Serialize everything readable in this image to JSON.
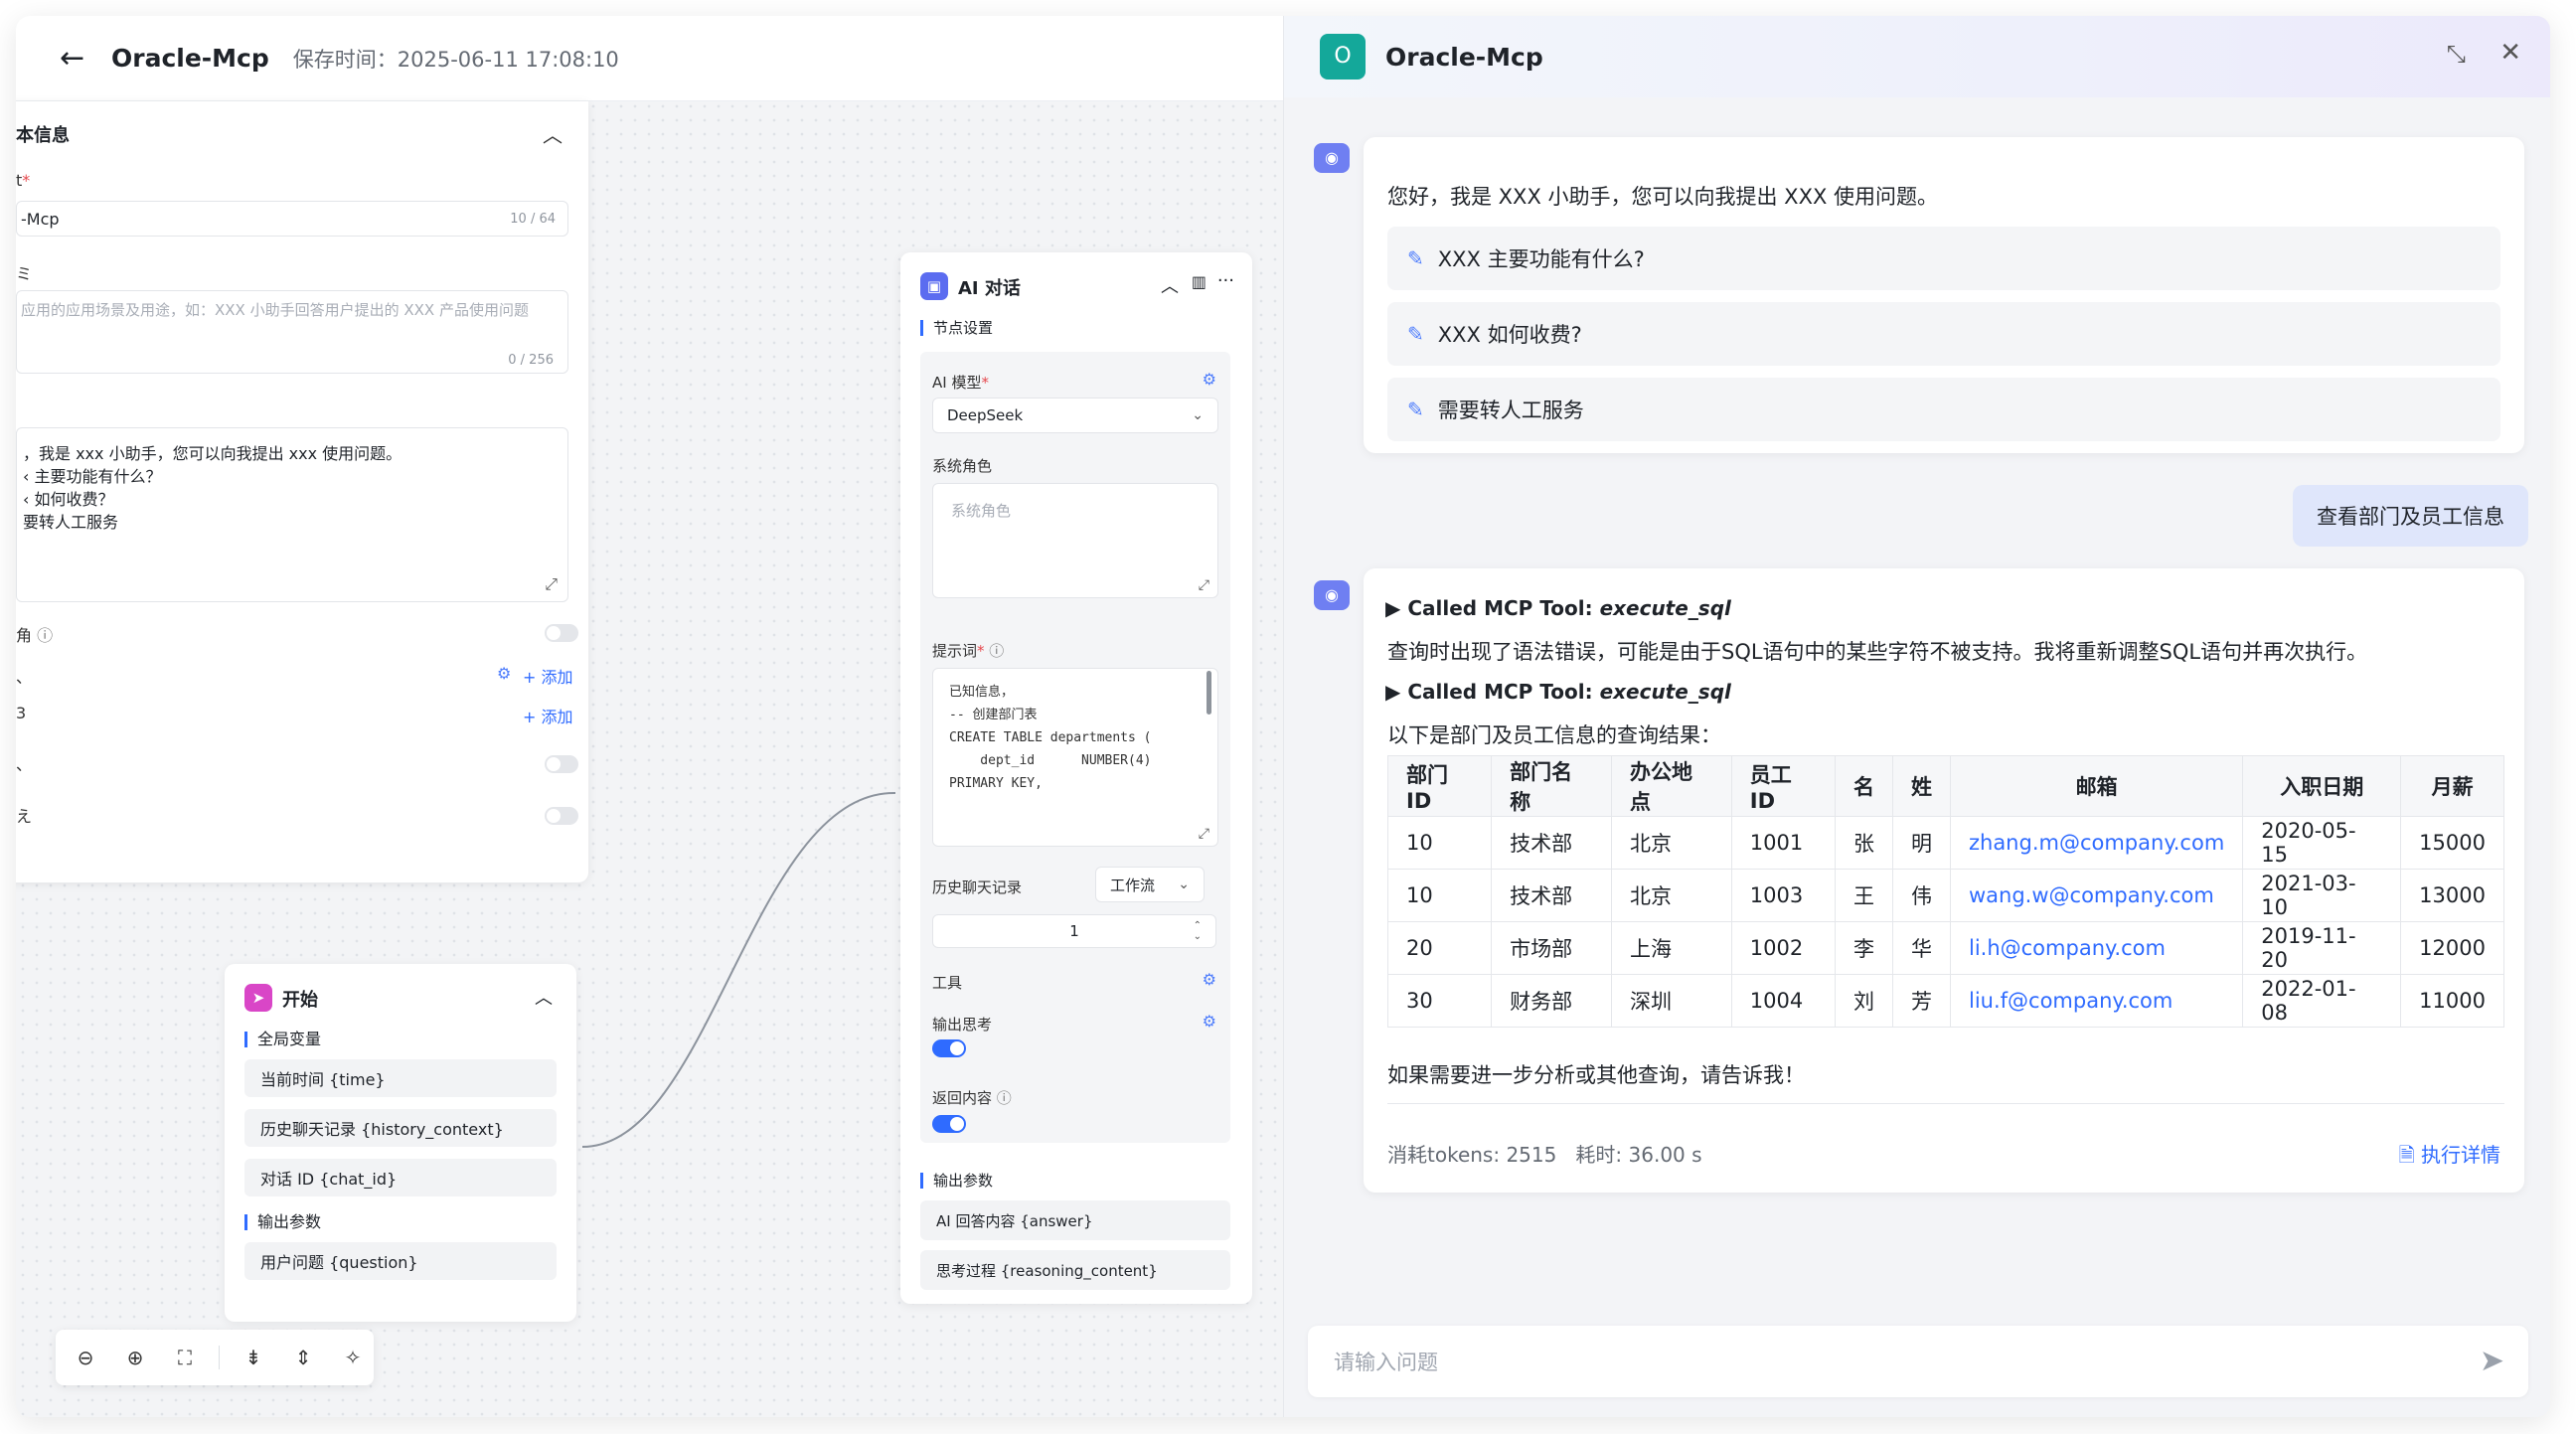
{
  "topbar": {
    "back": "←",
    "title": "Oracle-Mcp",
    "save_time": "保存时间：2025-06-11 17:08:10"
  },
  "basic": {
    "header": "本信息",
    "name_label": "t",
    "name_value": "-Mcp",
    "name_counter": "10 / 64",
    "desc_label": "ミ",
    "desc_placeholder": "应用的应用场景及用途，如：XXX 小助手回答用户提出的 XXX 产品使用问题",
    "desc_counter": "0 / 256",
    "opening_lines": [
      "，我是 xxx 小助手，您可以向我提出 xxx 使用问题。",
      "‹ 主要功能有什么？",
      "‹ 如何收费？",
      "要转人工服务"
    ],
    "row_labels": [
      "角",
      "、",
      "3",
      "、",
      "え"
    ],
    "add_label": "+ 添加"
  },
  "start_node": {
    "title": "开始",
    "global_vars_label": "全局变量",
    "global_vars": [
      "当前时间 {time}",
      "历史聊天记录 {history_context}",
      "对话 ID {chat_id}"
    ],
    "output_label": "输出参数",
    "outputs": [
      "用户问题 {question}"
    ]
  },
  "ai_node": {
    "title": "AI 对话",
    "node_settings": "节点设置",
    "model_label": "AI 模型",
    "model_value": "DeepSeek",
    "system_role_label": "系统角色",
    "system_role_placeholder": "系统角色",
    "prompt_label": "提示词",
    "prompt_code": "已知信息，\n-- 创建部门表\nCREATE TABLE departments (\n    dept_id      NUMBER(4)\nPRIMARY KEY,",
    "history_label": "历史聊天记录",
    "history_mode": "工作流",
    "history_count": "1",
    "tools_label": "工具",
    "output_thinking_label": "输出思考",
    "return_content_label": "返回内容",
    "output_params_label": "输出参数",
    "outputs": [
      "AI 回答内容 {answer}",
      "思考过程 {reasoning_content}"
    ]
  },
  "zoombar": {
    "icons": [
      "zoom-out-icon",
      "zoom-in-icon",
      "fit-view-icon",
      "collapse-icon",
      "expand-icon",
      "cleanup-icon"
    ]
  },
  "chat": {
    "avatar_letter": "O",
    "title": "Oracle-Mcp",
    "greeting": "您好，我是 XXX 小助手，您可以向我提出 XXX 使用问题。",
    "suggestions": [
      "XXX 主要功能有什么?",
      "XXX 如何收费?",
      "需要转人工服务"
    ],
    "user_message": "查看部门及员工信息",
    "tool_call_prefix": "▶ Called MCP Tool: ",
    "tool_name": "execute_sql",
    "error_note": "查询时出现了语法错误，可能是由于SQL语句中的某些字符不被支持。我将重新调整SQL语句并再次执行。",
    "result_intro": "以下是部门及员工信息的查询结果：",
    "table_headers": [
      "部门ID",
      "部门名称",
      "办公地点",
      "员工ID",
      "名",
      "姓",
      "邮箱",
      "入职日期",
      "月薪"
    ],
    "table_rows": [
      [
        "10",
        "技术部",
        "北京",
        "1001",
        "张",
        "明",
        "zhang.m@company.com",
        "2020-05-15",
        "15000"
      ],
      [
        "10",
        "技术部",
        "北京",
        "1003",
        "王",
        "伟",
        "wang.w@company.com",
        "2021-03-10",
        "13000"
      ],
      [
        "20",
        "市场部",
        "上海",
        "1002",
        "李",
        "华",
        "li.h@company.com",
        "2019-11-20",
        "12000"
      ],
      [
        "30",
        "财务部",
        "深圳",
        "1004",
        "刘",
        "芳",
        "liu.f@company.com",
        "2022-01-08",
        "11000"
      ]
    ],
    "closing": "如果需要进一步分析或其他查询，请告诉我！",
    "stats": "消耗tokens: 2515   耗时: 36.00 s",
    "details_link": "执行详情",
    "input_placeholder": "请输入问题"
  },
  "colors": {
    "accent": "#2f6bff",
    "avatar": "#14a89a",
    "bot": "#6f7ff2",
    "start_badge": "#d946c7",
    "ai_badge": "#5b6cf0"
  }
}
